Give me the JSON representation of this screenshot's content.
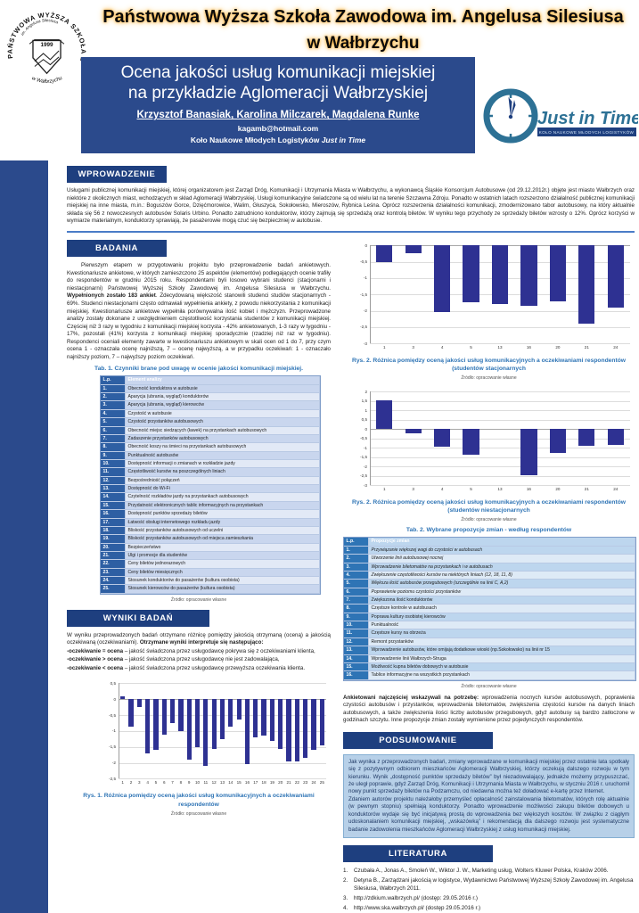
{
  "colors": {
    "navy": "#2b4a8c",
    "headbox": "#1e3f7f",
    "divider": "#4a7cc7",
    "bar": "#2e3192",
    "capblue": "#2e74b5",
    "glow": "#ffb43a",
    "logo-teal": "#2d7195",
    "t1-head": "#2e5fa3",
    "t1-rowa": "#c9d6ee",
    "t1-rowb": "#e2e9f6",
    "t2-head": "#2e74b5",
    "t2-rowa": "#bdd6ee",
    "t2-rowb": "#deeaf6",
    "summary-bg": "#b7d0e8",
    "summary-border": "#84aed2",
    "summary-text": "#1f3864"
  },
  "poster": {
    "university": {
      "line1": "Państwowa Wyższa Szkoła Zawodowa im. Angelusa Silesiusa",
      "line2": "w Wałbrzychu"
    },
    "crest": {
      "ring_top": "PAŃSTWOWA WYŻSZA SZKOŁA ZAWODOWA",
      "inner": "im. Angelusa Silesiusa",
      "ring_bottom": "w Wałbrzychu",
      "year": "1999"
    },
    "banner": {
      "title_line1": "Ocena jakości usług komunikacji miejskiej",
      "title_line2": "na przykładzie Aglomeracji Wałbrzyskiej",
      "authors": "Krzysztof Banasiak, Karolina Milczarek, Magdalena Runke",
      "email": "kagamb@hotmail.com",
      "affiliation_prefix": "Koło Naukowe Młodych Logistyków ",
      "affiliation_italic": "Just in Time"
    },
    "logo": {
      "name": "Just in Time",
      "tagline": "KOŁO NAUKOWE MŁODYCH LOGISTYKÓW"
    },
    "sections": {
      "intro": {
        "title": "WPROWADZENIE",
        "text": "Usługami publicznej komunikacji miejskiej, której organizatorem jest Zarząd Dróg, Komunikacji i Utrzymania Miasta w Wałbrzychu, a wykonawcą Śląskie Konsorcjum Autobusowe (od 29.12.2012r.) objęte jest miasto Wałbrzych oraz niektóre z okolicznych miast, wchodzących w skład Aglomeracji Wałbrzyskiej. Usługi komunikacyjne świadczone są od wielu lat na terenie Szczawna Zdroju. Ponadto w ostatnich latach rozszerzono działalność publicznej komunikacji miejskiej na inne miasta, m.in.: Boguszów Gorce, Dzięćmorowice, Walim, Głuszyca, Sokołowsko, Mieroszów, Rybnica Leśna. Oprócz rozszerzenia działalności komunikacji, zmodernizowano tabor autobusowy, na który aktualnie składa się 56 z nowoczesnych autobusów Solaris Urbino. Ponadto zatrudniono konduktorów, którzy zajmują się sprzedażą oraz kontrolą biletów. W wyniku tego przychody ze sprzedaży biletów wzrosty o 12%. Oprócz korzyści w wymiarze materialnym, konduktorzy sprawiają, że pasażerowie mogą czuć się bezpieczniej w autobusie."
      },
      "research": {
        "title": "BADANIA",
        "text_before": "Pierwszym etapem w przygotowaniu projektu było przeprowadzenie badań ankietowych. Kwestionariusze ankietowe, w których zamieszczono 25 aspektów (elementów) podlegających ocenie trafiły do respondentów w grudniu 2015 roku. Respondentami byli losowo wybrani studenci (stacjonarni i niestacjonarni) Państwowej Wyższej Szkoły Zawodowej im. Angelusa Silesiusa w Wałbrzychu. ",
        "text_bold": "Wypełnionych zostało 183 ankiet",
        "text_after": ". Zdecydowaną większość stanowili studenci studiów stacjonarnych - 69%. Studenci niestacjonarni często odmawiali wypełnienia ankiety, z powodu niekorzystania z komunikacji miejskiej. Kwestionariusze ankietowe wypełniła porównywalna ilość kobiet i mężczyzn. Przeprowadzone analizy zostały dokonane z uwzględnieniem częstotliwość korzystania studentów z komunikacji miejskiej. Częściej niż 3 razy w tygodniu z komunikacji miejskiej korzysta - 42% ankietowanych, 1-3 razy w tygodniu - 17%, pozostali (41%) korzysta z komunikacji miejskiej sporadycznie (rzadziej niż raz w tygodniu). Respondenci oceniali elementy zawarte w kwestionariuszu ankietowym w skali ocen od 1 do 7, przy czym ocena 1 - oznaczała ocenę najniższą, 7 – ocenę najwyższą, a w przypadku oczekiwań: 1 - oznaczało najniższy poziom, 7 – najwyższy poziom oczekiwań."
      },
      "results": {
        "title": "WYNIKI BADAŃ",
        "lead_before": "W wyniku przeprowadzonych badań otrzymano różnicę pomiędzy jakością otrzymaną (oceną) a jakością oczekiwaną (oczekiwaniami). ",
        "lead_bold": "Otrzymane wyniki interpretuje się następująco:",
        "bullets": [
          {
            "term": "-oczekiwanie = ocena",
            "desc": " – jakość świadczona przez usługodawcę pokrywa się z oczekiwaniami klienta,"
          },
          {
            "term": "-oczekiwanie > ocena",
            "desc": " – jakość świadczona przez usługodawcę nie jest zadowalająca,"
          },
          {
            "term": "-oczekiwanie < ocena",
            "desc": " – jakość świadczona przez usługodawcę przewyższa oczekiwania klienta."
          }
        ]
      },
      "proposals_note": {
        "bold": "Ankietowani najczęściej wskazywali na potrzebę:",
        "text": " wprowadzenia nocnych kursów autobusowych, poprawienia czystości autobusów i przystanków, wprowadzenia biletomatów, zwiększenia częstości kursów na danych liniach autobusowych, a także zwiększenia ilości liczby autobusów przegubowych, gdyż autobusy są bardzo zatłoczone w godzinach szczytu. Inne propozycje zmian zostały wymienione przez pojedynczych respondentów."
      },
      "summary": {
        "title": "PODSUMOWANIE",
        "p1": "Jak wynika z przeprowadzonych badań, zmiany wprowadzane w komunikacji miejskiej przez ostatnie lata spotkały się z pozytywnym odbiorem mieszkańców Aglomeracji Wałbrzyskiej, którzy oczekują dalszego rozwoju w tym kierunku. Wynik „dostępność punktów sprzedaży biletów” był niezadowalający, jednakże możemy przypuszczać, że uległ poprawie, gdyż Zarząd Dróg, Komunikacji i Utrzymania Miasta w Wałbrzychu, w styczniu 2016 r. uruchomił nowy punkt sprzedaży biletów na Podzamczu, od niedawna można też doładować e-kartę przez Internet.",
        "p2": "Zdaniem autorów projektu należałoby przemyśleć opłacalność zainstalowania biletomatów, których rolę aktualnie (w pewnym stopniu) spełniają konduktorzy. Ponadto wprowadzenie możliwości zakupu biletów dobowych u konduktorów wydaje się być inicjatywą prostą do wprowadzenia bez większych kosztów. W związku z ciągłym udoskonalaniem komunikacji miejskiej, „wskazówką” i rekomendacją dla dalszego rozwoju jest systematyczne badanie zadowolenia mieszkańców Aglomeracji Wałbrzyskiej z usług komunikacji miejskiej."
      },
      "literature": {
        "title": "LITERATURA",
        "items": [
          {
            "no": "1.",
            "text": "Czubała A., Jonas A., Smoleń W., Wiktor J. W., Marketing usług, Wolters Kluwer Polska, Kraków 2006."
          },
          {
            "no": "2.",
            "text": "Detyna B., Zarządzani jakością w logistyce, Wydawnictwo Państwowej Wyższej Szkoły Zawodowej im. Angelusa Silesiusa, Wałbrzych 2011."
          },
          {
            "no": "3.",
            "text": "http://zdkium.walbrzych.pl/  (dostęp: 29.05.2016 r.)"
          },
          {
            "no": "4.",
            "text": "http://www.ska.walbrzych.pl/ (dostęp 29.05.2016 r.)"
          }
        ]
      }
    },
    "table1": {
      "caption": "Tab. 1. Czynniki brane pod uwagę w ocenie jakości komunikacji miejskiej.",
      "headers": [
        "L.p.",
        "Element analizy"
      ],
      "rows": [
        "Obecność konduktora w autobusie",
        "Aparycja (ubrania, wygląd) konduktorów",
        "Aparycja (ubrania, wygląd)  kierowców",
        "Czystość w autobusie",
        "Czystość przystanków autobusowych",
        "Obecność miejsc siedzących (ławek) na przystankach autobusowych",
        "Zadaszenie przystanków autobusowych",
        "Obecność koszy na śmieci na przystankach autobusowych",
        "Punktualność autobusów",
        "Dostępność informacji o zmianach w rozkładzie jazdy",
        "Częstotliwość kursów na poszczególnych liniach",
        "Bezpośredniość połączeń",
        "Dostępność do Wi-Fi",
        "Czytelność rozkładów jazdy na przystankach autobusowych",
        "Przydatność elektronicznych tablic informacyjnych na przystankach",
        "Dostępność punktów sprzedaży biletów",
        "Łatwość obsługi internetowego rozkładu jazdy",
        "Bliskość przystanków autobusowych od uczelni",
        "Bliskość przystanków autobusowych od miejsca zamieszkania",
        "Bezpieczeństwo",
        "Ulgi i promocje dla studentów",
        "Ceny biletów jednorazowych",
        "Ceny biletów miesięcznych",
        "Stosunek konduktorów do pasażerów (kultura osobista)",
        "Stosunek kierowców do pasażerów (kultura osobista)"
      ],
      "italic_rows": 0
    },
    "table2": {
      "caption": "Tab. 2. Wybrane propozycje zmian - według respondentów",
      "headers": [
        "L.p.",
        "Propozycje zmian"
      ],
      "rows": [
        "Przywiązanie większej wagi do czystości w autobusach",
        "Utworzenie linii autobusowej nocnej",
        "Wprowadzenie biletomatów na przystankach i w autobusach",
        "Zwiększenie częstotliwości kursów na niektórych liniach (12, 18, 11, 8)",
        "Większa ilość autobusów przegubowych (szczególnie na linii C, A,2)",
        "Poprawienie poziomu czystości przystanków",
        "Zwiększona ilość konduktorów",
        "Częstsze kontrole w autobusach",
        "Poprawa kultury osobistej kierowców",
        "Punktualność",
        "Częstsze kursy na obrzeża",
        "Remont przystanków",
        "Wprowadzenie autobusów, które omijają dodatkowe wioski (np.Sokołowsko) na linii nr 15",
        "Wprowadzenie linii Wałbrzych-Struga",
        "Możliwość kupna biletów dobowych w autobusie",
        "Tablice informacyjne na wszystkich przystankach"
      ],
      "italic_rows": 6
    },
    "source_note": "Źródło: opracowanie własne"
  },
  "chart_data": [
    {
      "id": "rys1",
      "type": "bar",
      "categories": [
        "1",
        "2",
        "3",
        "4",
        "5",
        "6",
        "7",
        "8",
        "9",
        "10",
        "11",
        "12",
        "13",
        "14",
        "15",
        "16",
        "17",
        "18",
        "19",
        "20",
        "21",
        "22",
        "23",
        "24",
        "25"
      ],
      "values": [
        0.1,
        -0.85,
        -0.25,
        -1.7,
        -1.6,
        -1.1,
        -0.75,
        -1.0,
        -1.9,
        -1.5,
        -2.1,
        -1.55,
        -1.25,
        -0.85,
        -0.65,
        -2.05,
        -1.2,
        -1.15,
        -1.3,
        -1.55,
        -1.95,
        -1.95,
        -1.85,
        -1.6,
        -1.45
      ],
      "ylim": [
        -2.5,
        0.5
      ],
      "ytick_values": [
        0.5,
        0,
        -0.5,
        -1,
        -1.5,
        -2,
        -2.5
      ],
      "ytick_labels": [
        "0,5",
        "0",
        "-0,5",
        "-1",
        "-1,5",
        "-2",
        "-2,5"
      ],
      "grid": true,
      "legend": false,
      "xlabel": "",
      "ylabel": "",
      "caption": "Rys. 1. Różnica pomiędzy oceną jakości usług komunikacyjnych a oczekiwaniami respondentów",
      "source": "Źródło: opracowanie własne"
    },
    {
      "id": "rys2a",
      "type": "bar",
      "categories": [
        "1",
        "3",
        "4",
        "5",
        "13",
        "16",
        "20",
        "21",
        "24"
      ],
      "values": [
        -0.5,
        -0.25,
        -2.05,
        -1.75,
        -1.8,
        -1.85,
        -1.7,
        -2.4,
        -1.9
      ],
      "ylim": [
        -3,
        0
      ],
      "ytick_values": [
        0,
        -0.5,
        -1,
        -1.5,
        -2,
        -2.5,
        -3
      ],
      "ytick_labels": [
        "0",
        "-0,5",
        "-1",
        "-1,5",
        "-2",
        "-2,5",
        "-3"
      ],
      "grid": true,
      "legend": false,
      "xlabel": "",
      "ylabel": "",
      "caption": "Rys. 2. Różnica pomiędzy oceną jakości usług komunikacyjnych  a oczekiwaniami respondentów (studentów  stacjonarnych",
      "source": "Źródło: opracowanie własne"
    },
    {
      "id": "rys2b",
      "type": "bar",
      "categories": [
        "1",
        "3",
        "4",
        "5",
        "13",
        "16",
        "20",
        "21",
        "24"
      ],
      "values": [
        1.55,
        -0.2,
        -0.95,
        -1.35,
        0,
        -2.45,
        -1.25,
        -0.9,
        -0.85
      ],
      "ylim": [
        -3,
        2
      ],
      "ytick_values": [
        2,
        1.5,
        1,
        0.5,
        0,
        -0.5,
        -1,
        -1.5,
        -2,
        -2.5,
        -3
      ],
      "ytick_labels": [
        "2",
        "1,5",
        "1",
        "0,5",
        "0",
        "-0,5",
        "-1",
        "-1,5",
        "-2",
        "-2,5",
        "-3"
      ],
      "grid": true,
      "legend": false,
      "xlabel": "",
      "ylabel": "",
      "caption": "Rys. 2. Różnica pomiędzy oceną jakości usług komunikacyjnych  a oczekiwaniami respondentów (studentów  niestacjonarnych",
      "source": "Źródło: opracowanie własne"
    }
  ]
}
